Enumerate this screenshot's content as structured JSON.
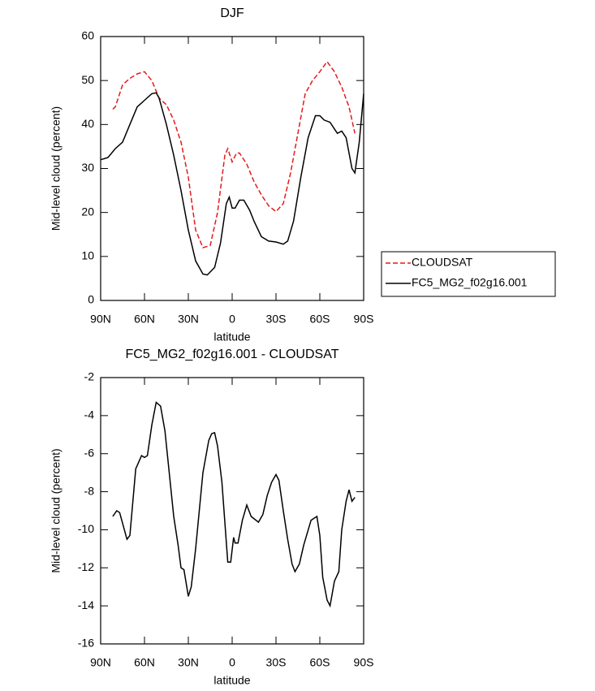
{
  "chart_data": [
    {
      "type": "line",
      "title": "DJF",
      "x_label": "latitude",
      "y_label": "Mid-level cloud (percent)",
      "xlim": [
        90,
        -90
      ],
      "xticks": [
        {
          "value": 90,
          "label": "90N"
        },
        {
          "value": 60,
          "label": "60N"
        },
        {
          "value": 30,
          "label": "30N"
        },
        0,
        {
          "value": -30,
          "label": "30S"
        },
        {
          "value": -60,
          "label": "60S"
        },
        {
          "value": -90,
          "label": "90S"
        }
      ],
      "ylim": [
        0,
        60
      ],
      "yticks": [
        0,
        10,
        20,
        30,
        40,
        50,
        60
      ],
      "legend": "right",
      "series": [
        {
          "name": "CLOUDSAT",
          "color": "#e41a1c",
          "dash": true,
          "x": [
            81.7,
            80,
            75,
            70,
            65,
            60,
            55,
            50,
            45,
            40,
            35,
            30,
            25,
            20,
            15,
            10,
            5,
            3,
            0,
            -3,
            -5,
            -10,
            -15,
            -20,
            -25,
            -30,
            -35,
            -40,
            -45,
            -50,
            -55,
            -60,
            -65,
            -70,
            -75,
            -80,
            -84
          ],
          "values": [
            43.5,
            44,
            49,
            50.5,
            51.5,
            52,
            50,
            46,
            44.5,
            41,
            36,
            28,
            16,
            12,
            12.5,
            20,
            33,
            34.5,
            31.5,
            33.5,
            33.5,
            31,
            27,
            24,
            21.5,
            20.2,
            22,
            29,
            38,
            47,
            50,
            52,
            54.3,
            52,
            48.5,
            44,
            38
          ]
        },
        {
          "name": "FC5_MG2_f02g16.001",
          "color": "#000000",
          "dash": false,
          "x": [
            90,
            85,
            80,
            75,
            70,
            65,
            60,
            55,
            52,
            50,
            45,
            40,
            35,
            30,
            25,
            20,
            17,
            12,
            8,
            4,
            2,
            0,
            -2,
            -5,
            -8,
            -12,
            -15,
            -20,
            -25,
            -30,
            -35,
            -38,
            -42,
            -47,
            -52,
            -57,
            -60,
            -63,
            -67,
            -70,
            -72,
            -75,
            -78,
            -82,
            -84,
            -87,
            -90
          ],
          "values": [
            32,
            32.5,
            34.5,
            36,
            40,
            44,
            45.5,
            47,
            47.2,
            46,
            40,
            33,
            25,
            16,
            9,
            6,
            5.8,
            7.5,
            13,
            22,
            23.5,
            21,
            21,
            22.8,
            22.8,
            20.5,
            18,
            14.5,
            13.5,
            13.3,
            12.8,
            13.5,
            18,
            28,
            37,
            42,
            42,
            41,
            40.5,
            39,
            38,
            38.5,
            37,
            30,
            29,
            36,
            47
          ]
        }
      ]
    },
    {
      "type": "line",
      "title": "FC5_MG2_f02g16.001 - CLOUDSAT",
      "x_label": "latitude",
      "y_label": "Mid-level cloud (percent)",
      "xlim": [
        90,
        -90
      ],
      "xticks": [
        {
          "value": 90,
          "label": "90N"
        },
        {
          "value": 60,
          "label": "60N"
        },
        {
          "value": 30,
          "label": "30N"
        },
        0,
        {
          "value": -30,
          "label": "30S"
        },
        {
          "value": -60,
          "label": "60S"
        },
        {
          "value": -90,
          "label": "90S"
        }
      ],
      "ylim": [
        -16,
        -2
      ],
      "yticks": [
        -16,
        -14,
        -12,
        -10,
        -8,
        -6,
        -4,
        -2
      ],
      "series": [
        {
          "color": "#000000",
          "dash": false,
          "x": [
            81.7,
            79,
            77,
            72,
            70,
            66,
            62,
            60,
            58,
            55,
            52,
            49,
            46,
            40,
            37,
            35,
            33,
            30,
            28,
            25,
            20,
            16,
            14,
            12,
            10,
            7,
            3,
            1,
            -1,
            -2,
            -4,
            -7,
            -10,
            -13,
            -18,
            -21,
            -24,
            -27,
            -30,
            -32,
            -35,
            -38,
            -41,
            -43,
            -46,
            -49,
            -54,
            -58,
            -60,
            -62,
            -65,
            -67,
            -70,
            -73,
            -75,
            -78,
            -80,
            -82,
            -84
          ],
          "values": [
            -9.3,
            -9.0,
            -9.1,
            -10.5,
            -10.3,
            -6.8,
            -6.1,
            -6.2,
            -6.1,
            -4.5,
            -3.3,
            -3.5,
            -4.8,
            -9.3,
            -10.8,
            -12,
            -12.1,
            -13.5,
            -13,
            -11,
            -7,
            -5.3,
            -4.95,
            -4.9,
            -5.6,
            -7.5,
            -11.7,
            -11.7,
            -10.4,
            -10.7,
            -10.7,
            -9.5,
            -8.7,
            -9.3,
            -9.6,
            -9.2,
            -8.2,
            -7.5,
            -7.1,
            -7.4,
            -9,
            -10.5,
            -11.8,
            -12.2,
            -11.8,
            -10.8,
            -9.5,
            -9.3,
            -10.3,
            -12.5,
            -13.7,
            -14,
            -12.7,
            -12.2,
            -10,
            -8.5,
            -7.9,
            -8.5,
            -8.3
          ]
        }
      ]
    }
  ]
}
